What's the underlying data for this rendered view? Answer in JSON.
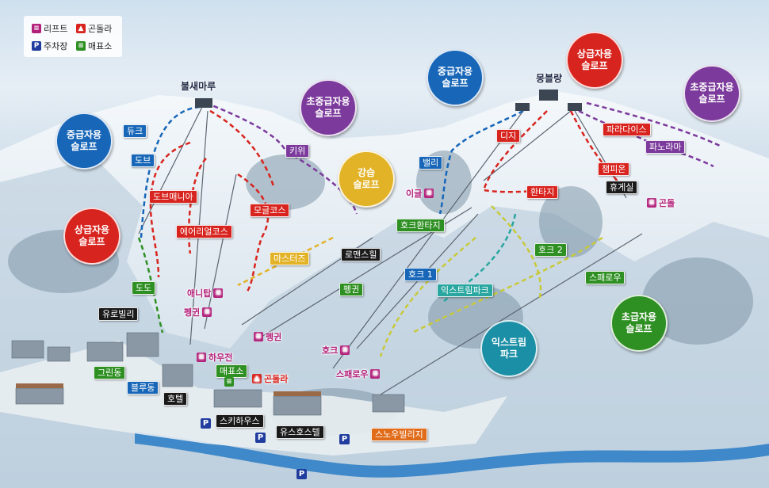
{
  "legend": {
    "lift": "리프트",
    "gondola": "곤돌라",
    "parking": "주차장",
    "ticket": "매표소"
  },
  "peaks": {
    "bulsae": "불새마루",
    "mont_blanc": "몽블랑"
  },
  "bubbles": {
    "intermediate_left": "중급자용\n슬로프",
    "advanced_left": "상급자용\n슬로프",
    "upper_intermediate_center": "초중급자용\n슬로프",
    "learning": "강습\n슬로프",
    "intermediate_center": "중급자용\n슬로프",
    "advanced_top": "상급자용\n슬로프",
    "upper_intermediate_right": "초중급자용\n슬로프",
    "beginner": "초급자용\n슬로프",
    "extreme_park": "익스트림\n파크"
  },
  "slopes": {
    "duke": "듀크",
    "dove": "도브",
    "dove_mania": "도브매니아",
    "aerial": "에어리얼코스",
    "mogul": "모글코스",
    "kiwi": "키위",
    "masters": "마스터즈",
    "dodo": "도도",
    "valley": "밸리",
    "digi": "디지",
    "dodge_mac": "챔피온",
    "paradise": "파라다이스",
    "panorama": "파노라마",
    "hawk_2": "호크 2",
    "hawk_1": "호크 1",
    "penguin": "펭귄",
    "hawk_hwanta": "호크환타지",
    "hwanta": "환타지",
    "extreme_park": "익스트림파크",
    "swallow": "스패로우"
  },
  "facilities": {
    "rest_house": "휴게실",
    "romance_hill": "로맨스힐",
    "euro_villa": "유로빌리",
    "green_dong": "그린동",
    "blue_dong": "블루동",
    "hotel": "호텔",
    "ski_house": "스키하우스",
    "youth_hostel": "유스호스텔",
    "snow_village": "스노우빌리지",
    "ticket_office": "매표소"
  },
  "lifts": {
    "eagle": "이글",
    "gondola_lift": "곤돌",
    "dodo_lift": "애니탑",
    "penguin_lift": "펭귄",
    "penguin_lift2": "펭귄",
    "hawk_lift": "호크",
    "harris": "하우전",
    "swallow_lift": "스패로우",
    "gondola": "곤돌라"
  }
}
